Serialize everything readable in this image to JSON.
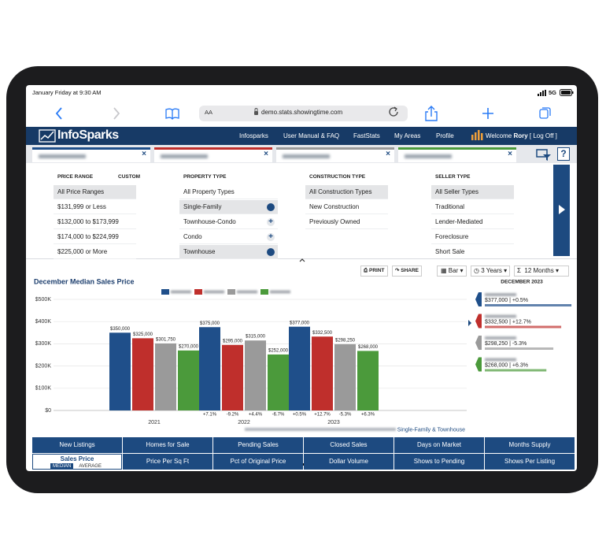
{
  "status_bar": {
    "time": "January Friday at 9:30 AM",
    "network": "5G"
  },
  "browser": {
    "text_size": "AA",
    "url": "demo.stats.showingtime.com"
  },
  "nav": {
    "logo": "InfoSparks",
    "items": [
      "Infosparks",
      "User Manual & FAQ",
      "FastStats",
      "My Areas",
      "Profile"
    ],
    "welcome": "Welcome",
    "user": "Rory",
    "action": "[ Log Off ]"
  },
  "filters": [
    {
      "title": "PRICE RANGE",
      "extra": "CUSTOM",
      "options": [
        "All Price Ranges",
        "$131,999 or Less",
        "$132,000 to $173,999",
        "$174,000 to $224,999",
        "$225,000 or More"
      ],
      "selected": [
        0
      ]
    },
    {
      "title": "PROPERTY TYPE",
      "options": [
        "All Property Types",
        "Single-Family",
        "Townhouse-Condo",
        "Condo",
        "Townhouse"
      ],
      "selected": [
        1,
        4
      ]
    },
    {
      "title": "CONSTRUCTION TYPE",
      "options": [
        "All Construction Types",
        "New Construction",
        "Previously Owned"
      ],
      "selected": [
        0
      ]
    },
    {
      "title": "SELLER TYPE",
      "options": [
        "All Seller Types",
        "Traditional",
        "Lender-Mediated",
        "Foreclosure",
        "Short Sale"
      ],
      "selected": [
        0
      ]
    }
  ],
  "toolbar": {
    "print": "PRINT",
    "share": "SHARE",
    "chart_type": "Bar",
    "period": "3 Years",
    "months": "12 Months"
  },
  "chart_data": {
    "type": "bar",
    "title": "December Median Sales Price",
    "categories": [
      "2021",
      "2022",
      "2023"
    ],
    "series": [
      {
        "color": "#1f4f8a",
        "values": [
          350000,
          375000,
          377000
        ],
        "value_labels": [
          "$350,000",
          "$375,000",
          "$377,000"
        ],
        "change_labels": [
          null,
          "+7.1%",
          "+0.5%"
        ]
      },
      {
        "color": "#bf2f2c",
        "values": [
          325000,
          295000,
          332500
        ],
        "value_labels": [
          "$325,000",
          "$295,000",
          "$332,500"
        ],
        "change_labels": [
          null,
          "-9.2%",
          "+12.7%"
        ]
      },
      {
        "color": "#9a9a9a",
        "values": [
          301750,
          315000,
          298250
        ],
        "value_labels": [
          "$301,750",
          "$315,000",
          "$298,250"
        ],
        "change_labels": [
          null,
          "+4.4%",
          "-5.3%"
        ]
      },
      {
        "color": "#4b9a3b",
        "values": [
          270000,
          252000,
          268000
        ],
        "value_labels": [
          "$270,000",
          "$252,000",
          "$268,000"
        ],
        "change_labels": [
          null,
          "-6.7%",
          "+6.3%"
        ]
      }
    ],
    "ylim": [
      0,
      500000
    ],
    "yticks": [
      {
        "value": 0,
        "label": "$0"
      },
      {
        "value": 100000,
        "label": "$100K"
      },
      {
        "value": 200000,
        "label": "$200K"
      },
      {
        "value": 300000,
        "label": "$300K"
      },
      {
        "value": 400000,
        "label": "$400K"
      },
      {
        "value": 500000,
        "label": "$500K"
      }
    ],
    "grid": true,
    "subtitle": "Single-Family & Townhouse"
  },
  "summary": {
    "title": "DECEMBER 2023",
    "entries": [
      "$377,000 | +0.5%",
      "$332,500 | +12.7%",
      "$298,250 | -5.3%",
      "$268,000 | +6.3%"
    ]
  },
  "metrics": [
    [
      "New Listings",
      "Homes for Sale",
      "Pending Sales",
      "Closed Sales",
      "Days on Market",
      "Months Supply"
    ],
    [
      "Sales Price",
      "Price Per Sq Ft",
      "Pct of Original Price",
      "Dollar Volume",
      "Shows to Pending",
      "Shows Per Listing"
    ]
  ],
  "sales_price_modes": [
    "MEDIAN",
    "AVERAGE"
  ]
}
